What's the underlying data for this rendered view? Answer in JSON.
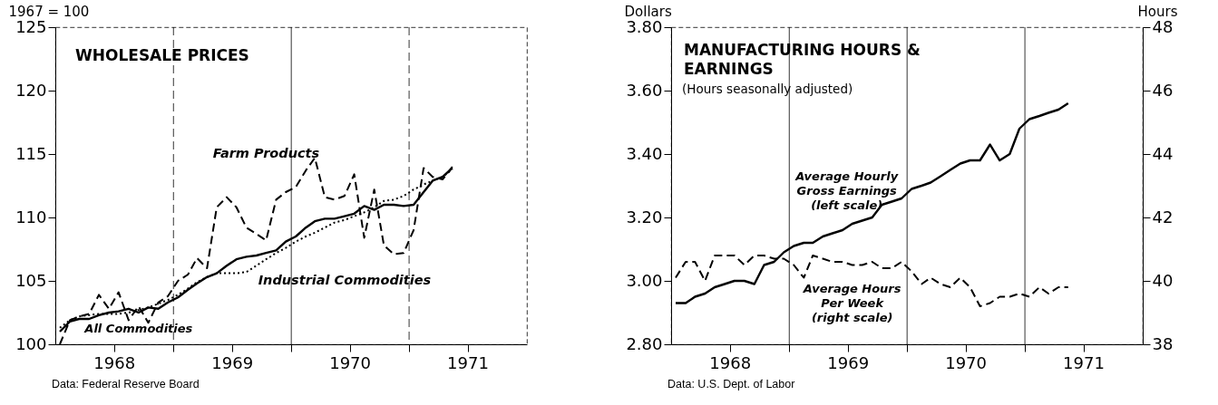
{
  "chart_data": [
    {
      "type": "line",
      "title": "WHOLESALE PRICES",
      "ylabel": "1967 = 100",
      "annotations": [
        "Data:  Federal Reserve Board"
      ],
      "x": [
        "1968-01-15",
        "1968-02-15",
        "1968-03-15",
        "1968-04-15",
        "1968-05-15",
        "1968-06-15",
        "1968-07-15",
        "1968-08-15",
        "1968-09-15",
        "1968-10-15",
        "1968-11-15",
        "1968-12-15",
        "1969-01-15",
        "1969-02-15",
        "1969-03-15",
        "1969-04-15",
        "1969-05-15",
        "1969-06-15",
        "1969-07-15",
        "1969-08-15",
        "1969-09-15",
        "1969-10-15",
        "1969-11-15",
        "1969-12-15",
        "1970-01-15",
        "1970-02-15",
        "1970-03-15",
        "1970-04-15",
        "1970-05-15",
        "1970-06-15",
        "1970-07-15",
        "1970-08-15",
        "1970-09-15",
        "1970-10-15",
        "1970-11-15",
        "1970-12-15",
        "1971-01-15",
        "1971-02-15",
        "1971-03-15",
        "1971-04-15",
        "1971-05-15"
      ],
      "series": [
        {
          "name": "All Commodities",
          "color": "#000000",
          "line_style": "solid",
          "values": [
            101.0,
            101.8,
            102.0,
            102.0,
            102.3,
            102.5,
            102.6,
            102.8,
            102.5,
            102.9,
            102.8,
            103.3,
            103.7,
            104.3,
            104.8,
            105.3,
            105.6,
            106.2,
            106.7,
            106.9,
            107.0,
            107.2,
            107.4,
            108.1,
            108.5,
            109.2,
            109.7,
            109.9,
            109.9,
            110.1,
            110.3,
            110.9,
            110.6,
            111.0,
            111.0,
            110.9,
            111.0,
            112.0,
            112.9,
            113.2,
            113.9
          ]
        },
        {
          "name": "Farm Products",
          "color": "#000000",
          "line_style": "dashed",
          "values": [
            100.0,
            101.9,
            102.2,
            102.4,
            103.9,
            102.8,
            104.1,
            101.9,
            103.0,
            101.7,
            103.3,
            103.8,
            105.0,
            105.5,
            106.8,
            106.0,
            110.8,
            111.6,
            110.8,
            109.2,
            108.7,
            108.2,
            111.4,
            112.0,
            112.4,
            113.7,
            114.7,
            111.6,
            111.4,
            111.7,
            113.4,
            108.4,
            112.2,
            107.8,
            107.1,
            107.2,
            109.0,
            113.9,
            113.2,
            113.0,
            114.0
          ]
        },
        {
          "name": "Industrial Commodities",
          "color": "#000000",
          "line_style": "dotted",
          "values": [
            101.3,
            101.9,
            102.2,
            102.3,
            102.4,
            102.4,
            102.4,
            102.5,
            102.7,
            102.9,
            103.2,
            103.5,
            103.9,
            104.4,
            104.9,
            105.3,
            105.6,
            105.6,
            105.6,
            105.7,
            106.2,
            106.7,
            107.2,
            107.6,
            108.1,
            108.5,
            108.8,
            109.2,
            109.6,
            109.8,
            110.1,
            110.4,
            110.8,
            111.3,
            111.4,
            111.7,
            112.2,
            112.6,
            112.9,
            113.2,
            113.8
          ]
        }
      ],
      "xlim": [
        "1968-01-01",
        "1972-01-01"
      ],
      "xticks": [
        {
          "value": "1968-07-01",
          "label": "1968"
        },
        {
          "value": "1969-07-01",
          "label": "1969"
        },
        {
          "value": "1970-07-01",
          "label": "1970"
        },
        {
          "value": "1971-07-01",
          "label": "1971"
        },
        {
          "value": "1969-01-01",
          "label": null
        },
        {
          "value": "1970-01-01",
          "label": null
        },
        {
          "value": "1971-01-01",
          "label": null
        }
      ],
      "ylim": [
        100,
        125
      ],
      "yticks": [
        100,
        105,
        110,
        115,
        120,
        125
      ],
      "ref_lines": [
        {
          "axis": "x",
          "value": "1969-01-01",
          "line_style": "dashed"
        },
        {
          "axis": "x",
          "value": "1970-01-01",
          "line_style": "solid"
        },
        {
          "axis": "x",
          "value": "1971-01-01",
          "line_style": "dashed"
        }
      ]
    },
    {
      "type": "line",
      "title": "MANUFACTURING HOURS & EARNINGS",
      "subtitle": "(Hours seasonally adjusted)",
      "ylabel": "Dollars",
      "y2label": "Hours",
      "annotations": [
        "Data:  U.S. Dept. of Labor"
      ],
      "x": [
        "1968-01-15",
        "1968-02-15",
        "1968-03-15",
        "1968-04-15",
        "1968-05-15",
        "1968-06-15",
        "1968-07-15",
        "1968-08-15",
        "1968-09-15",
        "1968-10-15",
        "1968-11-15",
        "1968-12-15",
        "1969-01-15",
        "1969-02-15",
        "1969-03-15",
        "1969-04-15",
        "1969-05-15",
        "1969-06-15",
        "1969-07-15",
        "1969-08-15",
        "1969-09-15",
        "1969-10-15",
        "1969-11-15",
        "1969-12-15",
        "1970-01-15",
        "1970-02-15",
        "1970-03-15",
        "1970-04-15",
        "1970-05-15",
        "1970-06-15",
        "1970-07-15",
        "1970-08-15",
        "1970-09-15",
        "1970-10-15",
        "1970-11-15",
        "1970-12-15",
        "1971-01-15",
        "1971-02-15",
        "1971-03-15",
        "1971-04-15",
        "1971-05-15"
      ],
      "series": [
        {
          "name": "Average Hourly Gross Earnings (left scale)",
          "color": "#000000",
          "line_style": "solid",
          "values": [
            2.93,
            2.93,
            2.95,
            2.96,
            2.98,
            2.99,
            3.0,
            3.0,
            2.99,
            3.05,
            3.06,
            3.09,
            3.11,
            3.12,
            3.12,
            3.14,
            3.15,
            3.16,
            3.18,
            3.19,
            3.2,
            3.24,
            3.25,
            3.26,
            3.29,
            3.3,
            3.31,
            3.33,
            3.35,
            3.37,
            3.38,
            3.38,
            3.43,
            3.38,
            3.4,
            3.48,
            3.51,
            3.52,
            3.53,
            3.54,
            3.56
          ]
        },
        {
          "name": "Average Hours Per Week (right scale)",
          "color": "#000000",
          "line_style": "dashed",
          "axis": "y2",
          "values": [
            40.1,
            40.6,
            40.6,
            40.0,
            40.8,
            40.8,
            40.8,
            40.5,
            40.8,
            40.8,
            40.7,
            40.7,
            40.5,
            40.1,
            40.8,
            40.7,
            40.6,
            40.6,
            40.5,
            40.5,
            40.6,
            40.4,
            40.4,
            40.6,
            40.3,
            39.9,
            40.1,
            39.9,
            39.8,
            40.1,
            39.8,
            39.2,
            39.3,
            39.5,
            39.5,
            39.6,
            39.5,
            39.8,
            39.6,
            39.8,
            39.8
          ]
        }
      ],
      "xlim": [
        "1968-01-01",
        "1972-01-01"
      ],
      "xticks": [
        {
          "value": "1968-07-01",
          "label": "1968"
        },
        {
          "value": "1969-07-01",
          "label": "1969"
        },
        {
          "value": "1970-07-01",
          "label": "1970"
        },
        {
          "value": "1971-07-01",
          "label": "1971"
        },
        {
          "value": "1969-01-01",
          "label": null
        },
        {
          "value": "1970-01-01",
          "label": null
        },
        {
          "value": "1971-01-01",
          "label": null
        }
      ],
      "ylim": [
        2.8,
        3.8
      ],
      "yticks": [
        {
          "value": 2.8,
          "label": "2.80"
        },
        {
          "value": 3.0,
          "label": "3.00"
        },
        {
          "value": 3.2,
          "label": "3.20"
        },
        {
          "value": 3.4,
          "label": "3.40"
        },
        {
          "value": 3.6,
          "label": "3.60"
        },
        {
          "value": 3.8,
          "label": "3.80"
        }
      ],
      "y2lim": [
        38,
        48
      ],
      "y2ticks": [
        38,
        40,
        42,
        44,
        46,
        48
      ],
      "ref_lines": [
        {
          "axis": "x",
          "value": "1969-01-01",
          "line_style": "solid"
        },
        {
          "axis": "x",
          "value": "1970-01-01",
          "line_style": "solid"
        },
        {
          "axis": "x",
          "value": "1971-01-01",
          "line_style": "solid"
        }
      ]
    }
  ]
}
